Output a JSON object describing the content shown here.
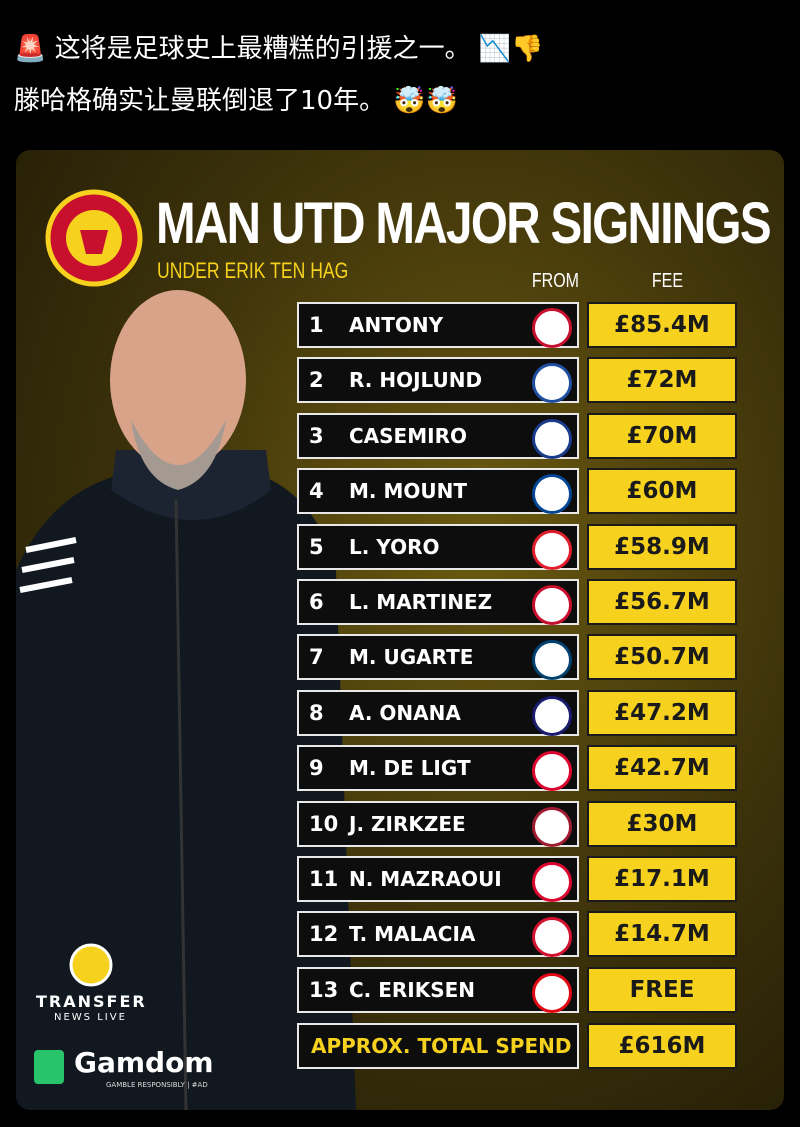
{
  "post": {
    "lines": [
      "🚨 这将是足球史上最糟糕的引援之一。 📉👎",
      "滕哈格确实让曼联倒退了10年。 🤯🤯"
    ]
  },
  "infographic": {
    "title": "MAN UTD MAJOR SIGNINGS",
    "subtitle": "UNDER ERIK TEN HAG",
    "columns": {
      "from": "FROM",
      "fee": "FEE"
    },
    "rows": [
      [
        "1",
        "ANTONY",
        "£85.4M"
      ],
      [
        "2",
        "R. HOJLUND",
        "£72M"
      ],
      [
        "3",
        "CASEMIRO",
        "£70M"
      ],
      [
        "4",
        "M. MOUNT",
        "£60M"
      ],
      [
        "5",
        "L. YORO",
        "£58.9M"
      ],
      [
        "6",
        "L. MARTINEZ",
        "£56.7M"
      ],
      [
        "7",
        "M. UGARTE",
        "£50.7M"
      ],
      [
        "8",
        "A. ONANA",
        "£47.2M"
      ],
      [
        "9",
        "M. DE LIGT",
        "£42.7M"
      ],
      [
        "10",
        "J. ZIRKZEE",
        "£30M"
      ],
      [
        "11",
        "N. MAZRAOUI",
        "£17.1M"
      ],
      [
        "12",
        "T. MALACIA",
        "£14.7M"
      ],
      [
        "13",
        "C. ERIKSEN",
        "FREE"
      ]
    ],
    "total": {
      "label": "APPROX. TOTAL SPEND",
      "value": "£616M"
    },
    "branding": {
      "transfer": "TRANSFER",
      "news_live": "NEWS LIVE",
      "sponsor": "Gamdom",
      "sponsor_note": "GAMBLE RESPONSIBLY | #AD"
    }
  }
}
